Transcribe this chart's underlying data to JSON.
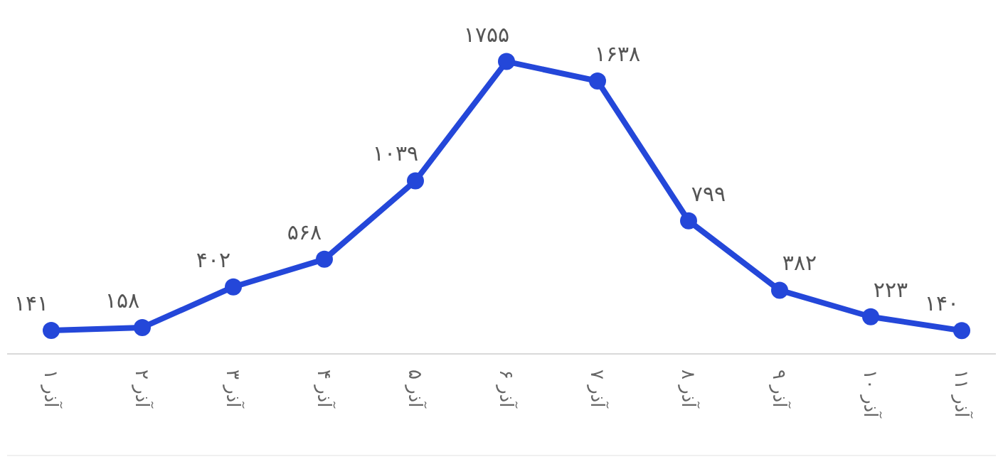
{
  "chart_data": {
    "type": "line",
    "categories": [
      "آذر ۱",
      "آذر ۲",
      "آذر ۳",
      "آذر ۴",
      "آذر ۵",
      "آذر ۶",
      "آذر ۷",
      "آذر ۸",
      "آذر ۹",
      "آذر ۱۰",
      "آذر ۱۱"
    ],
    "series": [
      {
        "color": "#2447d9",
        "values": [
          141,
          158,
          402,
          568,
          1039,
          1755,
          1638,
          799,
          382,
          223,
          140
        ],
        "value_labels": [
          "۱۴۱",
          "۱۵۸",
          "۴۰۲",
          "۵۶۸",
          "۱۰۳۹",
          "۱۷۵۵",
          "۱۶۳۸",
          "۷۹۹",
          "۳۸۲",
          "۲۲۳",
          "۱۴۰"
        ]
      }
    ],
    "marker": "circle",
    "line_style": "solid"
  }
}
